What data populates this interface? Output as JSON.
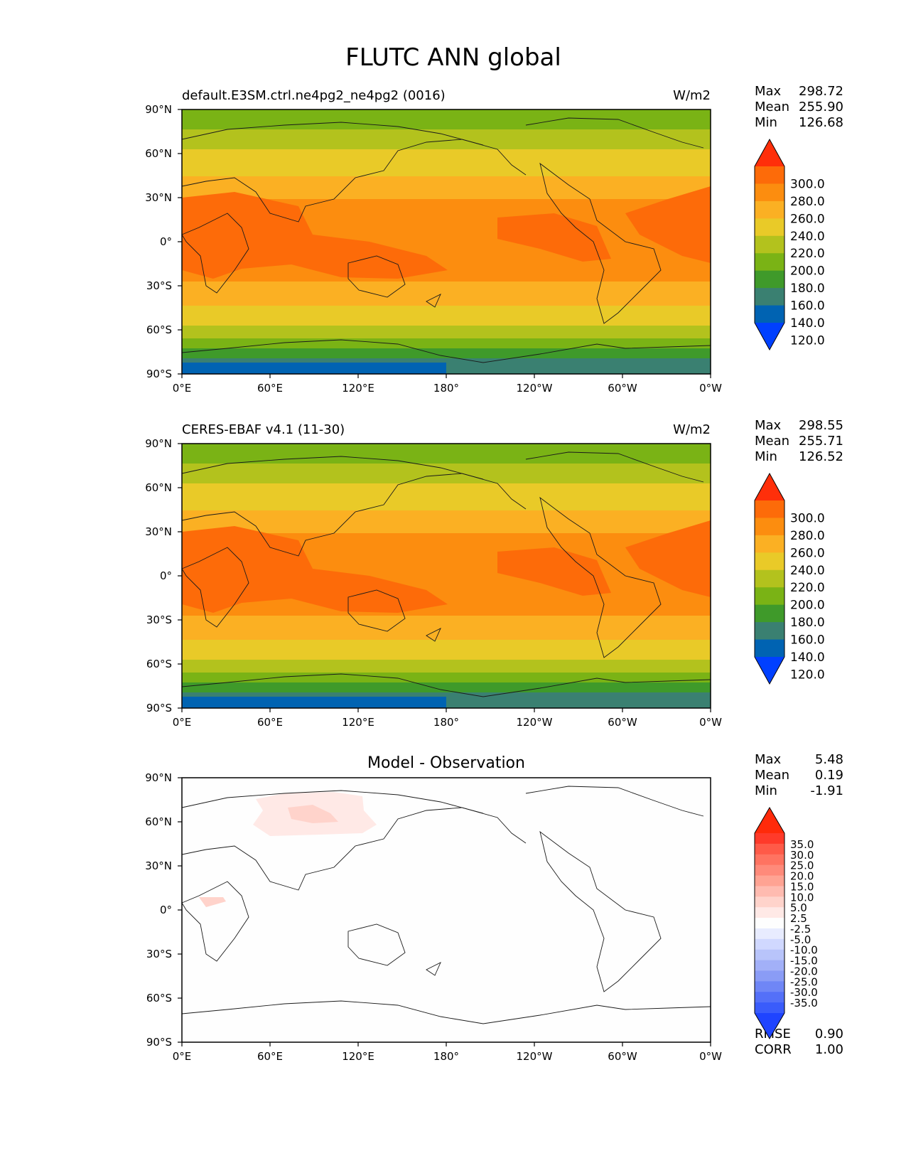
{
  "figure": {
    "title": "FLUTC ANN global",
    "x_ticks": [
      "0°E",
      "60°E",
      "120°E",
      "180°",
      "120°W",
      "60°W",
      "0°W"
    ],
    "y_ticks": [
      "90°N",
      "60°N",
      "30°N",
      "0°",
      "30°S",
      "60°S",
      "90°S"
    ],
    "panels": [
      {
        "left_title": "default.E3SM.ctrl.ne4pg2_ne4pg2 (0016)",
        "right_title": "W/m2",
        "stats": [
          [
            "Max",
            "298.72"
          ],
          [
            "Mean",
            "255.90"
          ],
          [
            "Min",
            "126.68"
          ]
        ]
      },
      {
        "left_title": "CERES-EBAF v4.1 (11-30)",
        "right_title": "W/m2",
        "stats": [
          [
            "Max",
            "298.55"
          ],
          [
            "Mean",
            "255.71"
          ],
          [
            "Min",
            "126.52"
          ]
        ]
      },
      {
        "center_title": "Model - Observation",
        "stats": [
          [
            "Max",
            "5.48"
          ],
          [
            "Mean",
            "0.19"
          ],
          [
            "Min",
            "-1.91"
          ]
        ],
        "extra_stats": [
          [
            "RMSE",
            "0.90"
          ],
          [
            "CORR",
            "1.00"
          ]
        ]
      }
    ],
    "colorbars": {
      "field": {
        "labels": [
          "300.0",
          "280.0",
          "260.0",
          "240.0",
          "220.0",
          "200.0",
          "180.0",
          "160.0",
          "140.0",
          "120.0"
        ],
        "colors": [
          "#ff2f0a",
          "#fd6b09",
          "#fc8d0f",
          "#fbb023",
          "#e9ca28",
          "#b3c21d",
          "#7ab315",
          "#3f9a2a",
          "#3a8071",
          "#0063b2",
          "#0040ff"
        ]
      },
      "diff": {
        "labels": [
          "35.0",
          "30.0",
          "25.0",
          "20.0",
          "15.0",
          "10.0",
          "5.0",
          "2.5",
          "-2.5",
          "-5.0",
          "-10.0",
          "-15.0",
          "-20.0",
          "-25.0",
          "-30.0",
          "-35.0"
        ],
        "colors": [
          "#ff2a0a",
          "#ff3a2a",
          "#ff5a48",
          "#ff7361",
          "#ff8a7a",
          "#ffa393",
          "#ffbbb0",
          "#ffd3cb",
          "#ffe9e6",
          "#fefefe",
          "#e8ecff",
          "#d0d8ff",
          "#b8c4fa",
          "#a2b0f8",
          "#8a9cf6",
          "#6f86f6",
          "#5470f8",
          "#3a5cfb",
          "#1f44ff"
        ]
      }
    },
    "field_band_colors": {
      "deep_blue": "#0063b2",
      "teal": "#3a8071",
      "green": "#3f9a2a",
      "yellow_green": "#7ab315",
      "olive": "#b3c21d",
      "yellow": "#e9ca28",
      "light_orange": "#fbb023",
      "orange": "#fc8d0f",
      "dark_orange": "#fd6b09",
      "red_orange": "#ff2f0a"
    }
  }
}
